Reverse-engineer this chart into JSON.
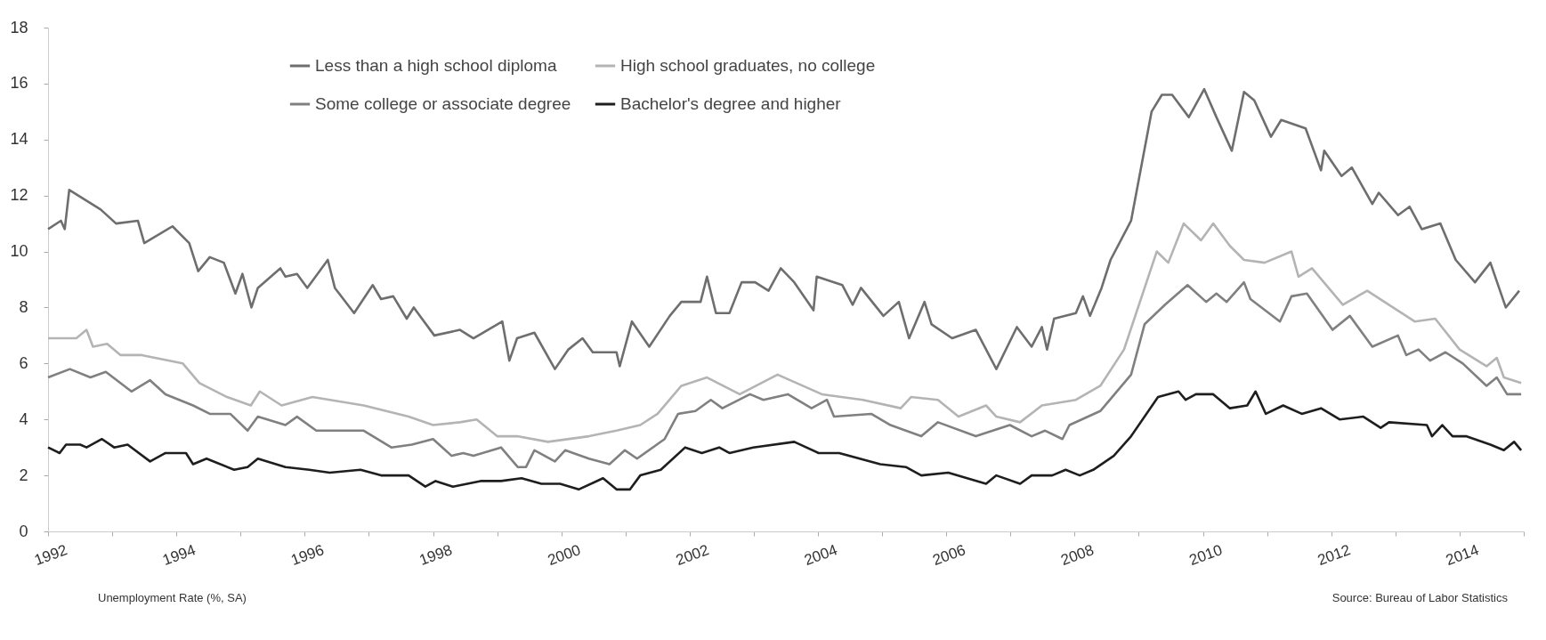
{
  "chart_data": {
    "type": "line",
    "xlim": [
      1992,
      2015
    ],
    "ylim": [
      0,
      18
    ],
    "yticks": [
      0,
      2,
      4,
      6,
      8,
      10,
      12,
      14,
      16,
      18
    ],
    "xticks": [
      1992,
      {
        "value": 1993,
        "label": null
      },
      1994,
      {
        "value": 1995,
        "label": null
      },
      1996,
      {
        "value": 1997,
        "label": null
      },
      1998,
      {
        "value": 1999,
        "label": null
      },
      2000,
      {
        "value": 2001,
        "label": null
      },
      2002,
      {
        "value": 2003,
        "label": null
      },
      2004,
      {
        "value": 2005,
        "label": null
      },
      2006,
      {
        "value": 2007,
        "label": null
      },
      2008,
      {
        "value": 2009,
        "label": null
      },
      2010,
      {
        "value": 2011,
        "label": null
      },
      2012,
      {
        "value": 2013,
        "label": null
      },
      2014,
      {
        "value": 2015,
        "label": null
      }
    ],
    "grid": false,
    "legend": "top",
    "line_style": "solid",
    "marker": "none",
    "annotations": [
      "Unemployment Rate (%, SA)",
      "Source: Bureau of Labor Statistics"
    ],
    "series": [
      {
        "name": "Less than a high school diploma",
        "color": "#6e6e6e",
        "x": [
          1992.0,
          1992.2,
          1992.26,
          1992.33,
          1992.82,
          1993.06,
          1993.4,
          1993.5,
          1993.94,
          1994.2,
          1994.34,
          1994.52,
          1994.74,
          1994.92,
          1995.03,
          1995.17,
          1995.27,
          1995.62,
          1995.7,
          1995.88,
          1996.04,
          1996.36,
          1996.47,
          1996.77,
          1997.06,
          1997.19,
          1997.38,
          1997.59,
          1997.7,
          1998.02,
          1998.42,
          1998.63,
          1999.08,
          1999.19,
          1999.31,
          1999.58,
          1999.9,
          2000.11,
          2000.33,
          2000.49,
          2000.86,
          2000.91,
          2001.1,
          2001.37,
          2001.69,
          2001.87,
          2002.17,
          2002.27,
          2002.41,
          2002.62,
          2002.81,
          2003.02,
          2003.23,
          2003.42,
          2003.63,
          2003.93,
          2003.98,
          2004.38,
          2004.54,
          2004.67,
          2005.02,
          2005.26,
          2005.42,
          2005.66,
          2005.77,
          2006.09,
          2006.46,
          2006.78,
          2007.1,
          2007.33,
          2007.49,
          2007.57,
          2007.68,
          2008.02,
          2008.13,
          2008.24,
          2008.42,
          2008.56,
          2008.88,
          2009.2,
          2009.36,
          2009.52,
          2009.78,
          2010.02,
          2010.21,
          2010.45,
          2010.64,
          2010.8,
          2011.06,
          2011.22,
          2011.6,
          2011.84,
          2011.89,
          2012.16,
          2012.32,
          2012.64,
          2012.74,
          2013.04,
          2013.22,
          2013.41,
          2013.7,
          2013.94,
          2014.24,
          2014.48,
          2014.72,
          2014.93
        ],
        "values": [
          10.8,
          11.1,
          10.8,
          12.2,
          11.5,
          11.0,
          11.1,
          10.3,
          10.9,
          10.3,
          9.3,
          9.8,
          9.6,
          8.5,
          9.2,
          8.0,
          8.7,
          9.4,
          9.1,
          9.2,
          8.7,
          9.7,
          8.7,
          7.8,
          8.8,
          8.3,
          8.4,
          7.6,
          8.0,
          7.0,
          7.2,
          6.9,
          7.5,
          6.1,
          6.9,
          7.1,
          5.8,
          6.5,
          6.9,
          6.4,
          6.4,
          5.9,
          7.5,
          6.6,
          7.7,
          8.2,
          8.2,
          9.1,
          7.8,
          7.8,
          8.9,
          8.9,
          8.6,
          9.4,
          8.9,
          7.9,
          9.1,
          8.8,
          8.1,
          8.7,
          7.7,
          8.2,
          6.9,
          8.2,
          7.4,
          6.9,
          7.2,
          5.8,
          7.3,
          6.6,
          7.3,
          6.5,
          7.6,
          7.8,
          8.4,
          7.7,
          8.7,
          9.7,
          11.1,
          15.0,
          15.6,
          15.6,
          14.8,
          15.8,
          14.8,
          13.6,
          15.7,
          15.4,
          14.1,
          14.7,
          14.4,
          12.9,
          13.6,
          12.7,
          13.0,
          11.7,
          12.1,
          11.3,
          11.6,
          10.8,
          11.0,
          9.7,
          8.9,
          9.6,
          8.0,
          8.6
        ]
      },
      {
        "name": "High school graduates, no college",
        "color": "#b4b4b4",
        "x": [
          1992.0,
          1992.44,
          1992.6,
          1992.7,
          1992.92,
          1993.13,
          1993.46,
          1994.1,
          1994.36,
          1994.79,
          1995.16,
          1995.3,
          1995.64,
          1996.12,
          1996.92,
          1997.62,
          1998.0,
          1998.42,
          1998.68,
          1999.0,
          1999.31,
          1999.79,
          2000.43,
          2000.86,
          2001.23,
          2001.5,
          2001.87,
          2002.27,
          2002.78,
          2003.37,
          2004.06,
          2004.7,
          2005.29,
          2005.45,
          2005.87,
          2006.19,
          2006.62,
          2006.78,
          2007.15,
          2007.49,
          2008.02,
          2008.4,
          2008.77,
          2009.28,
          2009.46,
          2009.7,
          2009.97,
          2010.16,
          2010.42,
          2010.64,
          2010.96,
          2011.38,
          2011.49,
          2011.7,
          2012.18,
          2012.56,
          2013.3,
          2013.62,
          2014.0,
          2014.42,
          2014.58,
          2014.69,
          2014.96
        ],
        "values": [
          6.9,
          6.9,
          7.2,
          6.6,
          6.7,
          6.3,
          6.3,
          6.0,
          5.3,
          4.8,
          4.5,
          5.0,
          4.5,
          4.8,
          4.5,
          4.1,
          3.8,
          3.9,
          4.0,
          3.4,
          3.4,
          3.2,
          3.4,
          3.6,
          3.8,
          4.2,
          5.2,
          5.5,
          4.9,
          5.6,
          4.9,
          4.7,
          4.4,
          4.8,
          4.7,
          4.1,
          4.5,
          4.1,
          3.9,
          4.5,
          4.7,
          5.2,
          6.5,
          10.0,
          9.6,
          11.0,
          10.4,
          11.0,
          10.2,
          9.7,
          9.6,
          10.0,
          9.1,
          9.4,
          8.1,
          8.6,
          7.5,
          7.6,
          6.5,
          5.9,
          6.2,
          5.5,
          5.3
        ]
      },
      {
        "name": "Some college or associate degree",
        "color": "#808080",
        "x": [
          1992.0,
          1992.34,
          1992.66,
          1992.9,
          1993.3,
          1993.59,
          1993.83,
          1994.26,
          1994.52,
          1994.84,
          1995.11,
          1995.27,
          1995.7,
          1995.88,
          1996.18,
          1996.92,
          1997.35,
          1997.67,
          1998.0,
          1998.29,
          1998.47,
          1998.63,
          1999.06,
          1999.32,
          1999.45,
          1999.58,
          1999.9,
          2000.06,
          2000.43,
          2000.75,
          2000.99,
          2001.18,
          2001.61,
          2001.82,
          2002.09,
          2002.33,
          2002.51,
          2002.94,
          2003.15,
          2003.53,
          2003.9,
          2004.14,
          2004.25,
          2004.83,
          2005.13,
          2005.61,
          2005.87,
          2006.46,
          2006.99,
          2007.33,
          2007.54,
          2007.81,
          2007.92,
          2008.4,
          2008.88,
          2009.09,
          2009.41,
          2009.76,
          2010.05,
          2010.21,
          2010.37,
          2010.64,
          2010.74,
          2011.2,
          2011.38,
          2011.62,
          2012.02,
          2012.29,
          2012.64,
          2013.04,
          2013.17,
          2013.36,
          2013.54,
          2013.78,
          2014.05,
          2014.42,
          2014.58,
          2014.74,
          2014.96
        ],
        "values": [
          5.5,
          5.8,
          5.5,
          5.7,
          5.0,
          5.4,
          4.9,
          4.5,
          4.2,
          4.2,
          3.6,
          4.1,
          3.8,
          4.1,
          3.6,
          3.6,
          3.0,
          3.1,
          3.3,
          2.7,
          2.8,
          2.7,
          3.0,
          2.3,
          2.3,
          2.9,
          2.5,
          2.9,
          2.6,
          2.4,
          2.9,
          2.6,
          3.3,
          4.2,
          4.3,
          4.7,
          4.4,
          4.9,
          4.7,
          4.9,
          4.4,
          4.7,
          4.1,
          4.2,
          3.8,
          3.4,
          3.9,
          3.4,
          3.8,
          3.4,
          3.6,
          3.3,
          3.8,
          4.3,
          5.6,
          7.4,
          8.1,
          8.8,
          8.2,
          8.5,
          8.2,
          8.9,
          8.3,
          7.5,
          8.4,
          8.5,
          7.2,
          7.7,
          6.6,
          7.0,
          6.3,
          6.5,
          6.1,
          6.4,
          6.0,
          5.2,
          5.5,
          4.9,
          4.9
        ]
      },
      {
        "name": "Bachelor's degree and higher",
        "color": "#1e1e1e",
        "x": [
          1992.0,
          1992.18,
          1992.28,
          1992.5,
          1992.6,
          1992.84,
          1993.03,
          1993.24,
          1993.59,
          1993.83,
          1994.15,
          1994.26,
          1994.47,
          1994.9,
          1995.11,
          1995.27,
          1995.7,
          1996.07,
          1996.39,
          1996.87,
          1997.19,
          1997.62,
          1997.88,
          1998.04,
          1998.31,
          1998.74,
          1999.06,
          1999.38,
          1999.69,
          1999.98,
          2000.27,
          2000.65,
          2000.86,
          2001.07,
          2001.23,
          2001.55,
          2001.93,
          2002.19,
          2002.46,
          2002.62,
          2002.99,
          2003.63,
          2004.01,
          2004.33,
          2004.97,
          2005.37,
          2005.61,
          2006.03,
          2006.62,
          2006.78,
          2007.15,
          2007.33,
          2007.65,
          2007.86,
          2008.08,
          2008.29,
          2008.61,
          2008.88,
          2009.3,
          2009.62,
          2009.73,
          2009.89,
          2010.16,
          2010.42,
          2010.69,
          2010.82,
          2010.98,
          2011.25,
          2011.54,
          2011.84,
          2012.13,
          2012.5,
          2012.77,
          2012.9,
          2013.49,
          2013.57,
          2013.73,
          2013.89,
          2014.1,
          2014.48,
          2014.69,
          2014.85,
          2014.96
        ],
        "values": [
          3.0,
          2.8,
          3.1,
          3.1,
          3.0,
          3.3,
          3.0,
          3.1,
          2.5,
          2.8,
          2.8,
          2.4,
          2.6,
          2.2,
          2.3,
          2.6,
          2.3,
          2.2,
          2.1,
          2.2,
          2.0,
          2.0,
          1.6,
          1.8,
          1.6,
          1.8,
          1.8,
          1.9,
          1.7,
          1.7,
          1.5,
          1.9,
          1.5,
          1.5,
          2.0,
          2.2,
          3.0,
          2.8,
          3.0,
          2.8,
          3.0,
          3.2,
          2.8,
          2.8,
          2.4,
          2.3,
          2.0,
          2.1,
          1.7,
          2.0,
          1.7,
          2.0,
          2.0,
          2.2,
          2.0,
          2.2,
          2.7,
          3.4,
          4.8,
          5.0,
          4.7,
          4.9,
          4.9,
          4.4,
          4.5,
          5.0,
          4.2,
          4.5,
          4.2,
          4.4,
          4.0,
          4.1,
          3.7,
          3.9,
          3.8,
          3.4,
          3.8,
          3.4,
          3.4,
          3.1,
          2.9,
          3.2,
          2.9
        ]
      }
    ]
  }
}
